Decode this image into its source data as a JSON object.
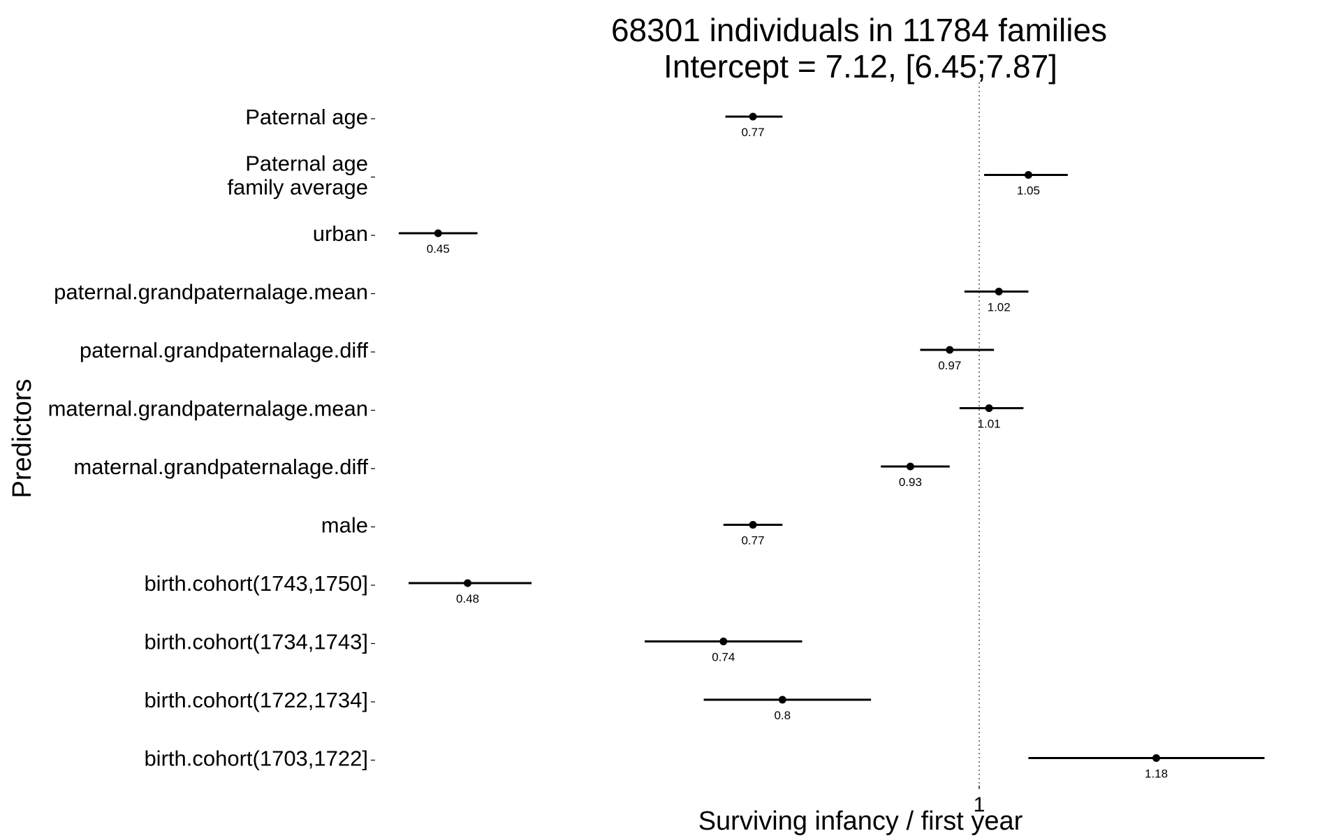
{
  "chart_data": {
    "type": "forest",
    "title": "68301 individuals in 11784 families",
    "subtitle": "Intercept = 7.12, [6.45;7.87]",
    "xlabel": "Surviving infancy / first year",
    "ylabel": "Predictors",
    "reference_line": 1,
    "x_ticks": [
      {
        "value": 1,
        "label": "1"
      }
    ],
    "predictors": [
      {
        "label_lines": [
          "Paternal age"
        ],
        "estimate": 0.77,
        "value_label": "0.77",
        "ci": [
          0.742,
          0.8
        ]
      },
      {
        "label_lines": [
          "Paternal age",
          "family average"
        ],
        "estimate": 1.05,
        "value_label": "1.05",
        "ci": [
          1.005,
          1.09
        ]
      },
      {
        "label_lines": [
          "urban"
        ],
        "estimate": 0.45,
        "value_label": "0.45",
        "ci": [
          0.41,
          0.49
        ]
      },
      {
        "label_lines": [
          "paternal.grandpaternalage.mean"
        ],
        "estimate": 1.02,
        "value_label": "1.02",
        "ci": [
          0.985,
          1.05
        ]
      },
      {
        "label_lines": [
          "paternal.grandpaternalage.diff"
        ],
        "estimate": 0.97,
        "value_label": "0.97",
        "ci": [
          0.94,
          1.015
        ]
      },
      {
        "label_lines": [
          "maternal.grandpaternalage.mean"
        ],
        "estimate": 1.01,
        "value_label": "1.01",
        "ci": [
          0.98,
          1.045
        ]
      },
      {
        "label_lines": [
          "maternal.grandpaternalage.diff"
        ],
        "estimate": 0.93,
        "value_label": "0.93",
        "ci": [
          0.9,
          0.97
        ]
      },
      {
        "label_lines": [
          "male"
        ],
        "estimate": 0.77,
        "value_label": "0.77",
        "ci": [
          0.74,
          0.8
        ]
      },
      {
        "label_lines": [
          "birth.cohort(1743,1750]"
        ],
        "estimate": 0.48,
        "value_label": "0.48",
        "ci": [
          0.42,
          0.545
        ]
      },
      {
        "label_lines": [
          "birth.cohort(1734,1743]"
        ],
        "estimate": 0.74,
        "value_label": "0.74",
        "ci": [
          0.66,
          0.82
        ]
      },
      {
        "label_lines": [
          "birth.cohort(1722,1734]"
        ],
        "estimate": 0.8,
        "value_label": "0.8",
        "ci": [
          0.72,
          0.89
        ]
      },
      {
        "label_lines": [
          "birth.cohort(1703,1722]"
        ],
        "estimate": 1.18,
        "value_label": "1.18",
        "ci": [
          1.05,
          1.29
        ]
      }
    ]
  }
}
